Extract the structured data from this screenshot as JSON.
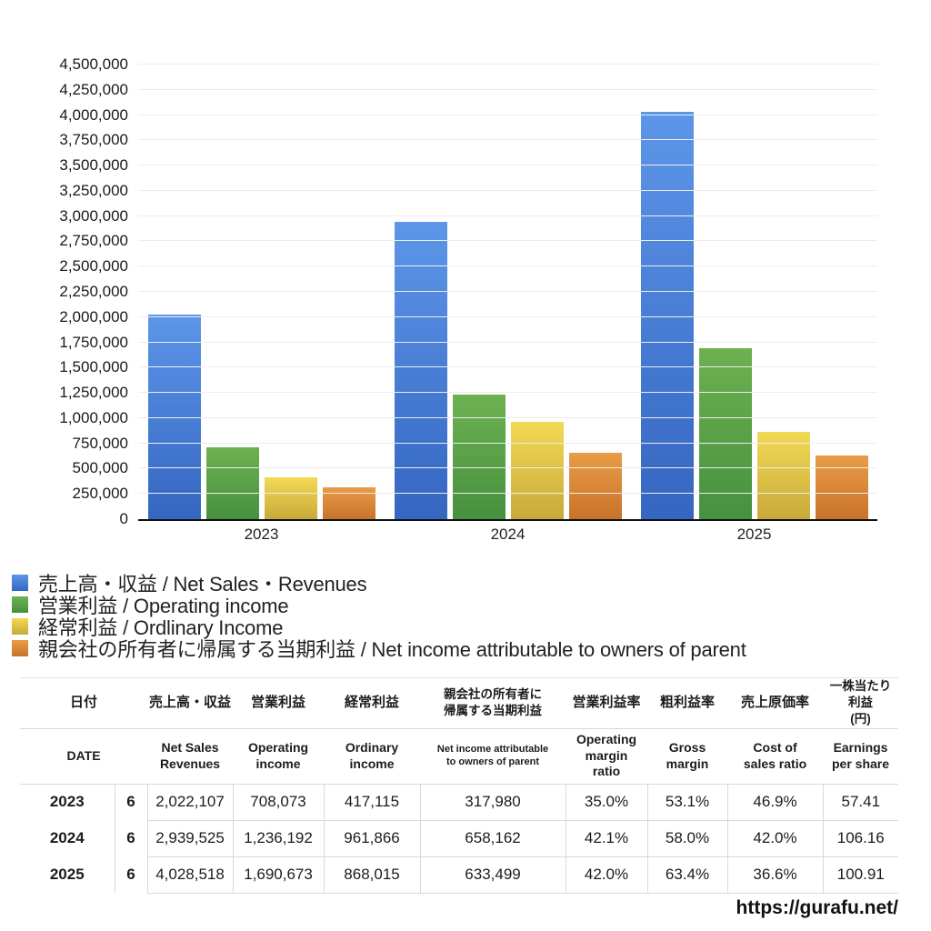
{
  "chart_data": {
    "type": "bar",
    "title": "",
    "categories": [
      "2023",
      "2024",
      "2025"
    ],
    "series": [
      {
        "name": "売上高・収益 / Net Sales・Revenues",
        "values": [
          2022107,
          2939525,
          4028518
        ],
        "color_top": "#5d96e9",
        "color_bottom": "#3566c1"
      },
      {
        "name": "営業利益 / Operating income",
        "values": [
          708073,
          1236192,
          1690673
        ],
        "color_top": "#6db150",
        "color_bottom": "#47903f"
      },
      {
        "name": "経常利益 / Ordlinary Income",
        "values": [
          417115,
          961866,
          868015
        ],
        "color_top": "#f2d954",
        "color_bottom": "#c8aa3a"
      },
      {
        "name": "親会社の所有者に帰属する当期利益 / Net income attributable to owners of parent",
        "values": [
          317980,
          658162,
          633499
        ],
        "color_top": "#e99c46",
        "color_bottom": "#c8732b"
      }
    ],
    "xlabel": "",
    "ylabel": "",
    "ylim": [
      0,
      4500000
    ],
    "ytick_step": 250000,
    "grid": true,
    "legend_position": "below-left"
  },
  "table": {
    "date_header_ja": "日付",
    "date_header_en": "DATE",
    "columns": [
      {
        "ja": "売上高・収益",
        "en": "Net Sales\nRevenues"
      },
      {
        "ja": "営業利益",
        "en": "Operating\nincome"
      },
      {
        "ja": "経常利益",
        "en": "Ordinary\nincome"
      },
      {
        "ja": "親会社の所有者に\n帰属する当期利益",
        "en": "Net income attributable\nto owners of parent"
      },
      {
        "ja": "営業利益率",
        "en": "Operating\nmargin\nratio"
      },
      {
        "ja": "粗利益率",
        "en": "Gross\nmargin"
      },
      {
        "ja": "売上原価率",
        "en": "Cost of\nsales ratio"
      },
      {
        "ja": "一株当たり利益\n(円)",
        "en": "Earnings\nper share"
      }
    ],
    "rows": [
      {
        "year": "2023",
        "month": "6",
        "values": [
          "2,022,107",
          "708,073",
          "417,115",
          "317,980",
          "35.0%",
          "53.1%",
          "46.9%",
          "57.41"
        ]
      },
      {
        "year": "2024",
        "month": "6",
        "values": [
          "2,939,525",
          "1,236,192",
          "961,866",
          "658,162",
          "42.1%",
          "58.0%",
          "42.0%",
          "106.16"
        ]
      },
      {
        "year": "2025",
        "month": "6",
        "values": [
          "4,028,518",
          "1,690,673",
          "868,015",
          "633,499",
          "42.0%",
          "63.4%",
          "36.6%",
          "100.91"
        ]
      }
    ]
  },
  "footer": {
    "url": "https://gurafu.net/"
  }
}
